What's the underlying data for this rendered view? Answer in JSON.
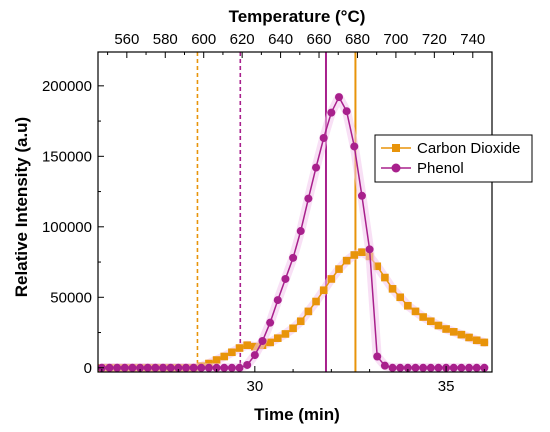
{
  "chart_data": {
    "type": "line",
    "xlabel": "Time (min)",
    "ylabel": "Relative Intensity (a.u)",
    "top_xlabel": "Temperature (°C)",
    "xlim": [
      25.9,
      36.2
    ],
    "ylim": [
      -3000,
      224000
    ],
    "x_ticks": [
      30,
      35
    ],
    "y_ticks": [
      0,
      50000,
      100000,
      150000,
      200000
    ],
    "y_tick_labels": [
      "0",
      "50000",
      "100000",
      "150000",
      "200000"
    ],
    "top_ticks": [
      560,
      580,
      600,
      620,
      640,
      660,
      680,
      700,
      720,
      740
    ],
    "top_xlim": [
      545,
      750
    ],
    "grid": false,
    "legend_position": "right",
    "series": [
      {
        "name": "Carbon Dioxide",
        "color": "#E8940A",
        "marker": "square",
        "x": [
          26.0,
          26.2,
          26.4,
          26.6,
          26.8,
          27.0,
          27.2,
          27.4,
          27.6,
          27.8,
          28.0,
          28.2,
          28.4,
          28.6,
          28.8,
          29.0,
          29.2,
          29.4,
          29.6,
          29.8,
          30.0,
          30.2,
          30.4,
          30.6,
          30.8,
          31.0,
          31.2,
          31.4,
          31.6,
          31.8,
          32.0,
          32.2,
          32.4,
          32.6,
          32.8,
          33.0,
          33.2,
          33.4,
          33.6,
          33.8,
          34.0,
          34.2,
          34.4,
          34.6,
          34.8,
          35.0,
          35.2,
          35.4,
          35.6,
          35.8,
          36.0
        ],
        "values": [
          0,
          0,
          0,
          0,
          0,
          0,
          0,
          0,
          0,
          0,
          0,
          0,
          0,
          1000,
          3000,
          5500,
          8000,
          11000,
          14000,
          16000,
          15000,
          16000,
          18000,
          21000,
          24000,
          28000,
          33000,
          40000,
          47000,
          55000,
          63000,
          70000,
          76000,
          80000,
          82000,
          79000,
          72000,
          64000,
          56000,
          50000,
          44000,
          40000,
          36000,
          33000,
          30000,
          27500,
          25500,
          23500,
          21500,
          19500,
          18000
        ]
      },
      {
        "name": "Phenol",
        "color": "#A8208C",
        "marker": "circle",
        "x": [
          26.0,
          26.2,
          26.4,
          26.6,
          26.8,
          27.0,
          27.2,
          27.4,
          27.6,
          27.8,
          28.0,
          28.2,
          28.4,
          28.6,
          28.8,
          29.0,
          29.2,
          29.4,
          29.6,
          29.8,
          30.0,
          30.2,
          30.4,
          30.6,
          30.8,
          31.0,
          31.2,
          31.4,
          31.6,
          31.8,
          32.0,
          32.2,
          32.4,
          32.6,
          32.8,
          33.0,
          33.2,
          33.4,
          33.6,
          33.8,
          34.0,
          34.2,
          34.4,
          34.6,
          34.8,
          35.0,
          35.2,
          35.4,
          35.6,
          35.8,
          36.0
        ],
        "values": [
          0,
          0,
          0,
          0,
          0,
          0,
          0,
          0,
          0,
          0,
          0,
          0,
          0,
          0,
          0,
          0,
          0,
          0,
          0,
          2000,
          9000,
          19000,
          32000,
          48000,
          63000,
          78000,
          97000,
          120000,
          142000,
          163000,
          181000,
          192000,
          182000,
          157000,
          122000,
          84000,
          8000,
          1500,
          0,
          0,
          0,
          0,
          0,
          0,
          0,
          0,
          0,
          0,
          0,
          0,
          0
        ]
      }
    ],
    "vertical_lines": [
      {
        "x": 28.5,
        "color": "#E8940A",
        "style": "dashed"
      },
      {
        "x": 29.62,
        "color": "#A8208C",
        "style": "dashed"
      },
      {
        "x": 31.86,
        "color": "#A8208C",
        "style": "solid"
      },
      {
        "x": 32.63,
        "color": "#E8940A",
        "style": "solid"
      }
    ]
  }
}
